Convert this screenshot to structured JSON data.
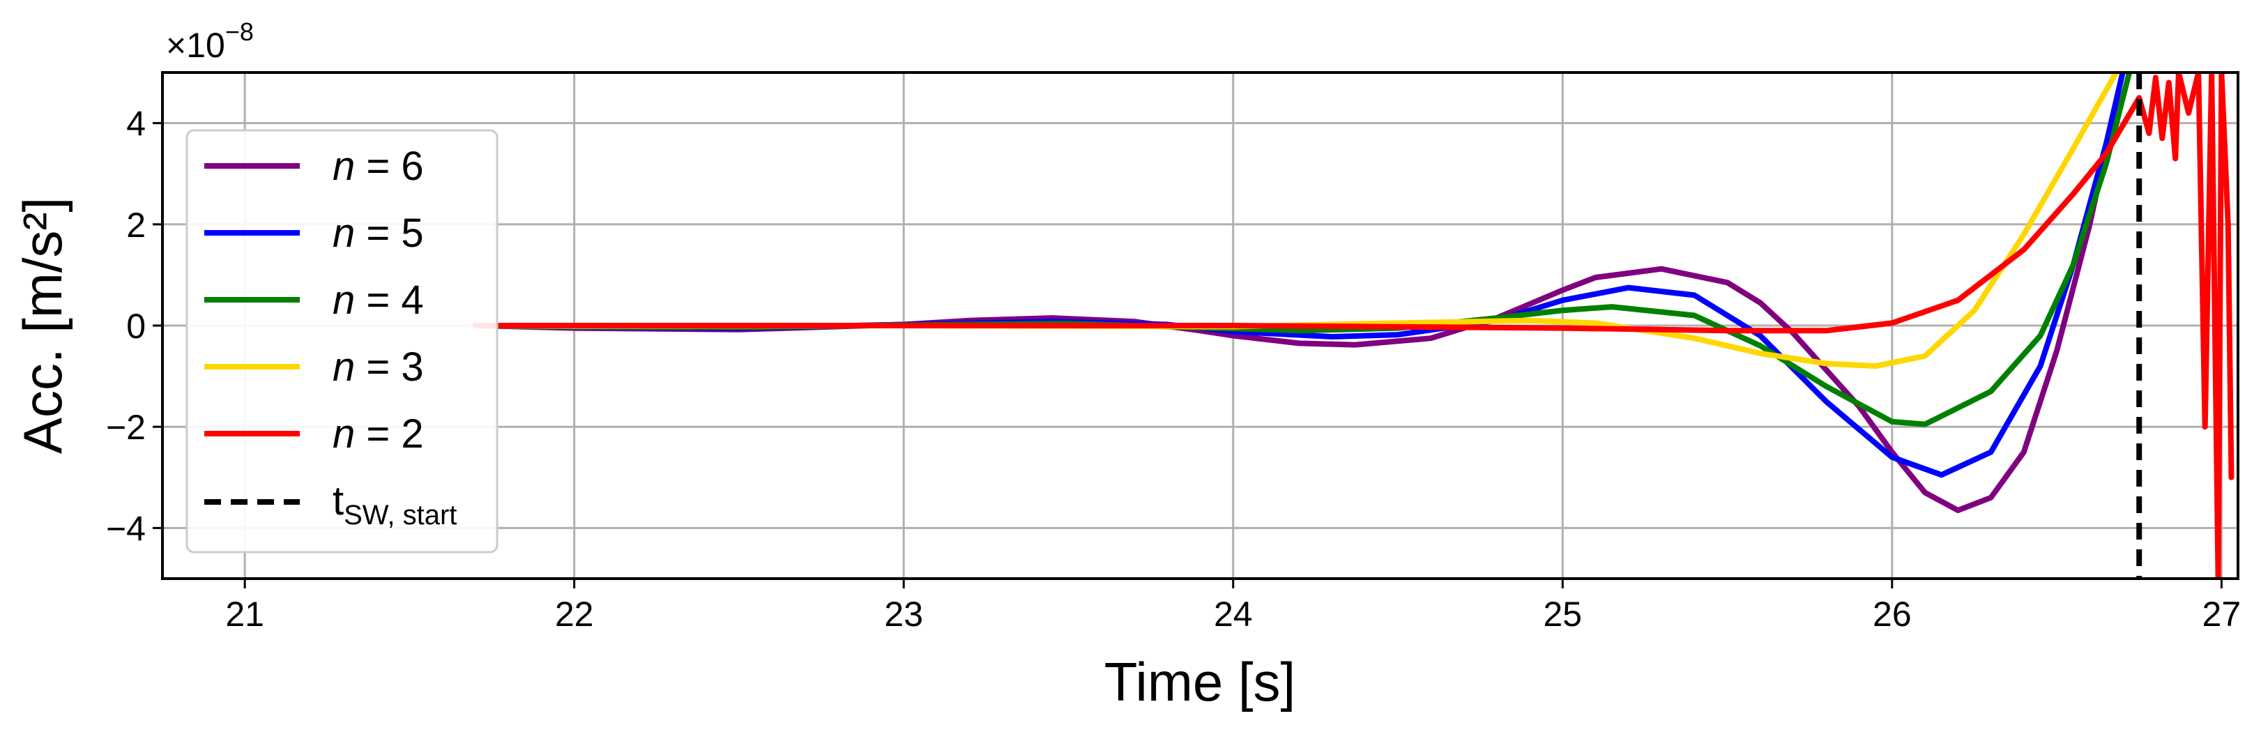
{
  "chart_data": {
    "type": "line",
    "xlabel": "Time [s]",
    "ylabel": "Acc. [m/s²]",
    "y_scale_label": "×10",
    "y_scale_exponent": "−8",
    "xlim": [
      20.75,
      27.05
    ],
    "ylim": [
      -5,
      5
    ],
    "xticks": [
      21,
      22,
      23,
      24,
      25,
      26,
      27
    ],
    "xtick_labels": [
      "21",
      "22",
      "23",
      "24",
      "25",
      "26",
      "27"
    ],
    "yticks": [
      -4,
      -2,
      0,
      2,
      4
    ],
    "ytick_labels": [
      "−4",
      "−2",
      "0",
      "2",
      "4"
    ],
    "grid": true,
    "legend_position": "left",
    "series": [
      {
        "name": "n = 6",
        "name_prefix": "n",
        "name_suffix": " = 6",
        "color": "#800080",
        "x": [
          21.7,
          22.0,
          22.5,
          23.0,
          23.2,
          23.45,
          23.7,
          23.9,
          24.0,
          24.2,
          24.37,
          24.6,
          24.8,
          25.0,
          25.1,
          25.3,
          25.5,
          25.6,
          25.7,
          25.9,
          26.0,
          26.1,
          26.2,
          26.3,
          26.4,
          26.5,
          26.6,
          26.65,
          26.7
        ],
        "y": [
          0.0,
          -0.05,
          -0.08,
          0.02,
          0.1,
          0.15,
          0.08,
          -0.1,
          -0.2,
          -0.35,
          -0.38,
          -0.25,
          0.15,
          0.7,
          0.95,
          1.12,
          0.85,
          0.45,
          -0.15,
          -1.6,
          -2.5,
          -3.3,
          -3.65,
          -3.4,
          -2.5,
          -0.5,
          2.0,
          3.5,
          5.0
        ]
      },
      {
        "name": "n = 5",
        "name_prefix": "n",
        "name_suffix": " = 5",
        "color": "#0000ff",
        "x": [
          21.7,
          22.0,
          22.5,
          23.0,
          23.45,
          23.8,
          24.0,
          24.3,
          24.5,
          24.8,
          25.0,
          25.2,
          25.4,
          25.6,
          25.8,
          26.0,
          26.15,
          26.3,
          26.45,
          26.55,
          26.65,
          26.7
        ],
        "y": [
          0.0,
          -0.03,
          -0.05,
          0.02,
          0.08,
          0.02,
          -0.12,
          -0.22,
          -0.18,
          0.1,
          0.5,
          0.75,
          0.6,
          -0.2,
          -1.5,
          -2.6,
          -2.95,
          -2.5,
          -0.8,
          1.2,
          3.6,
          5.0
        ]
      },
      {
        "name": "n = 4",
        "name_prefix": "n",
        "name_suffix": " = 4",
        "color": "#008000",
        "x": [
          21.7,
          22.0,
          22.5,
          23.0,
          23.5,
          24.0,
          24.2,
          24.5,
          24.8,
          25.0,
          25.15,
          25.4,
          25.6,
          25.8,
          26.0,
          26.1,
          26.3,
          26.45,
          26.55,
          26.65,
          26.72
        ],
        "y": [
          0.0,
          -0.02,
          -0.03,
          0.01,
          0.04,
          -0.06,
          -0.1,
          -0.05,
          0.15,
          0.3,
          0.37,
          0.2,
          -0.4,
          -1.2,
          -1.9,
          -1.95,
          -1.3,
          -0.2,
          1.2,
          3.2,
          5.0
        ]
      },
      {
        "name": "n = 3",
        "name_prefix": "n",
        "name_suffix": " = 3",
        "color": "#ffd700",
        "x": [
          21.7,
          22.0,
          23.0,
          24.0,
          24.5,
          24.9,
          25.1,
          25.4,
          25.6,
          25.8,
          25.95,
          26.1,
          26.25,
          26.4,
          26.55,
          26.68
        ],
        "y": [
          0.0,
          -0.01,
          0.0,
          -0.02,
          0.05,
          0.1,
          0.05,
          -0.25,
          -0.55,
          -0.75,
          -0.8,
          -0.6,
          0.3,
          1.8,
          3.5,
          5.0
        ]
      },
      {
        "name": "n = 2",
        "name_prefix": "n",
        "name_suffix": " = 2",
        "color": "#ff0000",
        "x": [
          21.7,
          22.5,
          23.0,
          24.0,
          25.0,
          25.5,
          25.8,
          26.0,
          26.2,
          26.4,
          26.55,
          26.65,
          26.75,
          26.78,
          26.8,
          26.82,
          26.84,
          26.86,
          26.87,
          26.9,
          26.93,
          26.95,
          26.97,
          26.99,
          27.0,
          27.02,
          27.03
        ],
        "y": [
          0.0,
          0.0,
          0.0,
          0.0,
          -0.05,
          -0.1,
          -0.1,
          0.05,
          0.5,
          1.5,
          2.6,
          3.4,
          4.5,
          3.8,
          4.9,
          3.7,
          4.8,
          3.3,
          5.0,
          4.2,
          5.0,
          -2.0,
          5.0,
          -5.0,
          5.0,
          2.0,
          -3.0
        ]
      }
    ],
    "vlines": [
      {
        "name": "tSW, start",
        "x": 26.75,
        "color": "#000000",
        "style": "dashed"
      }
    ],
    "legend_vline_main": "t",
    "legend_vline_sub": "SW, start"
  }
}
